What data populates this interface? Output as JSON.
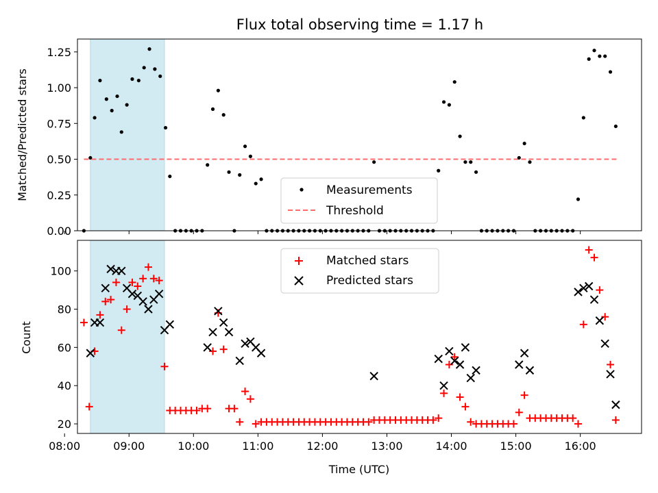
{
  "figure": {
    "title": "Flux total observing time = 1.17 h"
  },
  "chart_data": [
    {
      "type": "scatter",
      "ylabel": "Matched/Predicted stars",
      "xlim": [
        8.2,
        16.95
      ],
      "ylim": [
        0,
        1.34
      ],
      "yticks": [
        "0.00",
        "0.25",
        "0.50",
        "0.75",
        "1.00",
        "1.25"
      ],
      "shaded_span": {
        "x_start": "08:24",
        "x_end": "09:33",
        "color": "#add8e6"
      },
      "threshold": {
        "name": "Threshold",
        "value": 0.5,
        "x_start": "08:18",
        "x_end": "16:36",
        "color": "#ff6b6b"
      },
      "legend": {
        "position": "lower-center",
        "entries": [
          "Measurements",
          "Threshold"
        ]
      },
      "series": [
        {
          "name": "Measurements",
          "color": "#000000",
          "points": [
            [
              "08:18",
              0.0
            ],
            [
              "08:24",
              0.51
            ],
            [
              "08:28",
              0.79
            ],
            [
              "08:33",
              1.05
            ],
            [
              "08:39",
              0.92
            ],
            [
              "08:44",
              0.84
            ],
            [
              "08:49",
              0.94
            ],
            [
              "08:53",
              0.69
            ],
            [
              "08:58",
              0.88
            ],
            [
              "09:03",
              1.06
            ],
            [
              "09:09",
              1.05
            ],
            [
              "09:14",
              1.14
            ],
            [
              "09:19",
              1.27
            ],
            [
              "09:24",
              1.13
            ],
            [
              "09:29",
              1.08
            ],
            [
              "09:34",
              0.72
            ],
            [
              "09:38",
              0.38
            ],
            [
              "09:43",
              0.0
            ],
            [
              "09:48",
              0.0
            ],
            [
              "09:53",
              0.0
            ],
            [
              "09:58",
              0.0
            ],
            [
              "10:03",
              0.0
            ],
            [
              "10:08",
              0.0
            ],
            [
              "10:13",
              0.46
            ],
            [
              "10:18",
              0.85
            ],
            [
              "10:23",
              0.98
            ],
            [
              "10:28",
              0.81
            ],
            [
              "10:33",
              0.41
            ],
            [
              "10:38",
              0.0
            ],
            [
              "10:43",
              0.39
            ],
            [
              "10:48",
              0.59
            ],
            [
              "10:53",
              0.52
            ],
            [
              "10:58",
              0.33
            ],
            [
              "11:03",
              0.36
            ],
            [
              "11:08",
              0.0
            ],
            [
              "11:13",
              0.0
            ],
            [
              "11:18",
              0.0
            ],
            [
              "11:23",
              0.0
            ],
            [
              "11:28",
              0.0
            ],
            [
              "11:33",
              0.0
            ],
            [
              "11:38",
              0.0
            ],
            [
              "11:43",
              0.0
            ],
            [
              "11:48",
              0.0
            ],
            [
              "11:53",
              0.0
            ],
            [
              "11:58",
              0.0
            ],
            [
              "12:03",
              0.0
            ],
            [
              "12:08",
              0.0
            ],
            [
              "12:13",
              0.0
            ],
            [
              "12:18",
              0.0
            ],
            [
              "12:23",
              0.0
            ],
            [
              "12:28",
              0.0
            ],
            [
              "12:33",
              0.0
            ],
            [
              "12:38",
              0.0
            ],
            [
              "12:43",
              0.0
            ],
            [
              "12:48",
              0.48
            ],
            [
              "12:53",
              0.0
            ],
            [
              "12:58",
              0.0
            ],
            [
              "13:03",
              0.0
            ],
            [
              "13:08",
              0.0
            ],
            [
              "13:13",
              0.0
            ],
            [
              "13:18",
              0.0
            ],
            [
              "13:23",
              0.0
            ],
            [
              "13:28",
              0.0
            ],
            [
              "13:33",
              0.0
            ],
            [
              "13:38",
              0.0
            ],
            [
              "13:43",
              0.0
            ],
            [
              "13:48",
              0.42
            ],
            [
              "13:53",
              0.9
            ],
            [
              "13:58",
              0.88
            ],
            [
              "14:03",
              1.04
            ],
            [
              "14:08",
              0.66
            ],
            [
              "14:13",
              0.48
            ],
            [
              "14:18",
              0.48
            ],
            [
              "14:23",
              0.41
            ],
            [
              "14:28",
              0.0
            ],
            [
              "14:33",
              0.0
            ],
            [
              "14:38",
              0.0
            ],
            [
              "14:43",
              0.0
            ],
            [
              "14:48",
              0.0
            ],
            [
              "14:53",
              0.0
            ],
            [
              "14:58",
              0.0
            ],
            [
              "15:03",
              0.51
            ],
            [
              "15:08",
              0.61
            ],
            [
              "15:13",
              0.48
            ],
            [
              "15:18",
              0.0
            ],
            [
              "15:23",
              0.0
            ],
            [
              "15:28",
              0.0
            ],
            [
              "15:33",
              0.0
            ],
            [
              "15:38",
              0.0
            ],
            [
              "15:43",
              0.0
            ],
            [
              "15:48",
              0.0
            ],
            [
              "15:53",
              0.0
            ],
            [
              "15:58",
              0.22
            ],
            [
              "16:03",
              0.79
            ],
            [
              "16:08",
              1.2
            ],
            [
              "16:13",
              1.26
            ],
            [
              "16:18",
              1.22
            ],
            [
              "16:23",
              1.22
            ],
            [
              "16:28",
              1.11
            ],
            [
              "16:33",
              0.73
            ]
          ]
        }
      ]
    },
    {
      "type": "scatter",
      "xlabel": "Time (UTC)",
      "ylabel": "Count",
      "xlim": [
        8.2,
        16.95
      ],
      "ylim": [
        15,
        116
      ],
      "yticks": [
        "20",
        "40",
        "60",
        "80",
        "100"
      ],
      "xticks": [
        "08:00",
        "09:00",
        "10:00",
        "11:00",
        "12:00",
        "13:00",
        "14:00",
        "15:00",
        "16:00"
      ],
      "shaded_span": {
        "x_start": "08:24",
        "x_end": "09:33",
        "color": "#add8e6"
      },
      "legend": {
        "position": "top-center",
        "entries": [
          "Matched stars",
          "Predicted stars"
        ]
      },
      "series": [
        {
          "name": "Matched stars",
          "marker": "+",
          "color": "#ff0000",
          "points": [
            [
              "08:18",
              73
            ],
            [
              "08:23",
              29
            ],
            [
              "08:28",
              58
            ],
            [
              "08:33",
              77
            ],
            [
              "08:38",
              84
            ],
            [
              "08:43",
              85
            ],
            [
              "08:48",
              94
            ],
            [
              "08:53",
              69
            ],
            [
              "08:58",
              80
            ],
            [
              "09:03",
              94
            ],
            [
              "09:08",
              92
            ],
            [
              "09:13",
              96
            ],
            [
              "09:18",
              102
            ],
            [
              "09:23",
              96
            ],
            [
              "09:28",
              95
            ],
            [
              "09:33",
              50
            ],
            [
              "09:38",
              27
            ],
            [
              "09:43",
              27
            ],
            [
              "09:48",
              27
            ],
            [
              "09:53",
              27
            ],
            [
              "09:58",
              27
            ],
            [
              "10:03",
              27
            ],
            [
              "10:08",
              28
            ],
            [
              "10:13",
              28
            ],
            [
              "10:18",
              58
            ],
            [
              "10:23",
              78
            ],
            [
              "10:28",
              59
            ],
            [
              "10:33",
              28
            ],
            [
              "10:38",
              28
            ],
            [
              "10:43",
              21
            ],
            [
              "10:48",
              37
            ],
            [
              "10:53",
              33
            ],
            [
              "10:58",
              20
            ],
            [
              "11:03",
              21
            ],
            [
              "11:08",
              21
            ],
            [
              "11:13",
              21
            ],
            [
              "11:18",
              21
            ],
            [
              "11:23",
              21
            ],
            [
              "11:28",
              21
            ],
            [
              "11:33",
              21
            ],
            [
              "11:38",
              21
            ],
            [
              "11:43",
              21
            ],
            [
              "11:48",
              21
            ],
            [
              "11:53",
              21
            ],
            [
              "11:58",
              21
            ],
            [
              "12:03",
              21
            ],
            [
              "12:08",
              21
            ],
            [
              "12:13",
              21
            ],
            [
              "12:18",
              21
            ],
            [
              "12:23",
              21
            ],
            [
              "12:28",
              21
            ],
            [
              "12:33",
              21
            ],
            [
              "12:38",
              21
            ],
            [
              "12:43",
              21
            ],
            [
              "12:48",
              22
            ],
            [
              "12:53",
              22
            ],
            [
              "12:58",
              22
            ],
            [
              "13:03",
              22
            ],
            [
              "13:08",
              22
            ],
            [
              "13:13",
              22
            ],
            [
              "13:18",
              22
            ],
            [
              "13:23",
              22
            ],
            [
              "13:28",
              22
            ],
            [
              "13:33",
              22
            ],
            [
              "13:38",
              22
            ],
            [
              "13:43",
              22
            ],
            [
              "13:48",
              23
            ],
            [
              "13:53",
              36
            ],
            [
              "13:58",
              51
            ],
            [
              "14:03",
              55
            ],
            [
              "14:08",
              34
            ],
            [
              "14:13",
              29
            ],
            [
              "14:18",
              21
            ],
            [
              "14:23",
              20
            ],
            [
              "14:28",
              20
            ],
            [
              "14:33",
              20
            ],
            [
              "14:38",
              20
            ],
            [
              "14:43",
              20
            ],
            [
              "14:48",
              20
            ],
            [
              "14:53",
              20
            ],
            [
              "14:58",
              20
            ],
            [
              "15:03",
              26
            ],
            [
              "15:08",
              35
            ],
            [
              "15:13",
              23
            ],
            [
              "15:18",
              23
            ],
            [
              "15:23",
              23
            ],
            [
              "15:28",
              23
            ],
            [
              "15:33",
              23
            ],
            [
              "15:38",
              23
            ],
            [
              "15:43",
              23
            ],
            [
              "15:48",
              23
            ],
            [
              "15:53",
              23
            ],
            [
              "15:58",
              20
            ],
            [
              "16:03",
              72
            ],
            [
              "16:08",
              111
            ],
            [
              "16:13",
              107
            ],
            [
              "16:18",
              90
            ],
            [
              "16:23",
              76
            ],
            [
              "16:28",
              51
            ],
            [
              "16:33",
              22
            ]
          ]
        },
        {
          "name": "Predicted stars",
          "marker": "x",
          "color": "#000000",
          "points": [
            [
              "08:24",
              57
            ],
            [
              "08:28",
              73
            ],
            [
              "08:33",
              73
            ],
            [
              "08:38",
              91
            ],
            [
              "08:43",
              101
            ],
            [
              "08:48",
              100
            ],
            [
              "08:53",
              100
            ],
            [
              "08:58",
              91
            ],
            [
              "09:03",
              88
            ],
            [
              "09:08",
              87
            ],
            [
              "09:13",
              84
            ],
            [
              "09:18",
              80
            ],
            [
              "09:23",
              85
            ],
            [
              "09:28",
              88
            ],
            [
              "09:33",
              69
            ],
            [
              "09:38",
              72
            ],
            [
              "10:13",
              60
            ],
            [
              "10:18",
              68
            ],
            [
              "10:23",
              79
            ],
            [
              "10:28",
              73
            ],
            [
              "10:33",
              68
            ],
            [
              "10:43",
              53
            ],
            [
              "10:48",
              62
            ],
            [
              "10:53",
              63
            ],
            [
              "10:58",
              60
            ],
            [
              "11:03",
              57
            ],
            [
              "12:48",
              45
            ],
            [
              "13:48",
              54
            ],
            [
              "13:53",
              40
            ],
            [
              "13:58",
              58
            ],
            [
              "14:03",
              53
            ],
            [
              "14:08",
              51
            ],
            [
              "14:13",
              60
            ],
            [
              "14:18",
              44
            ],
            [
              "14:23",
              48
            ],
            [
              "15:03",
              51
            ],
            [
              "15:08",
              57
            ],
            [
              "15:13",
              48
            ],
            [
              "15:58",
              89
            ],
            [
              "16:03",
              91
            ],
            [
              "16:08",
              92
            ],
            [
              "16:13",
              85
            ],
            [
              "16:18",
              74
            ],
            [
              "16:23",
              62
            ],
            [
              "16:28",
              46
            ],
            [
              "16:33",
              30
            ]
          ]
        }
      ]
    }
  ]
}
